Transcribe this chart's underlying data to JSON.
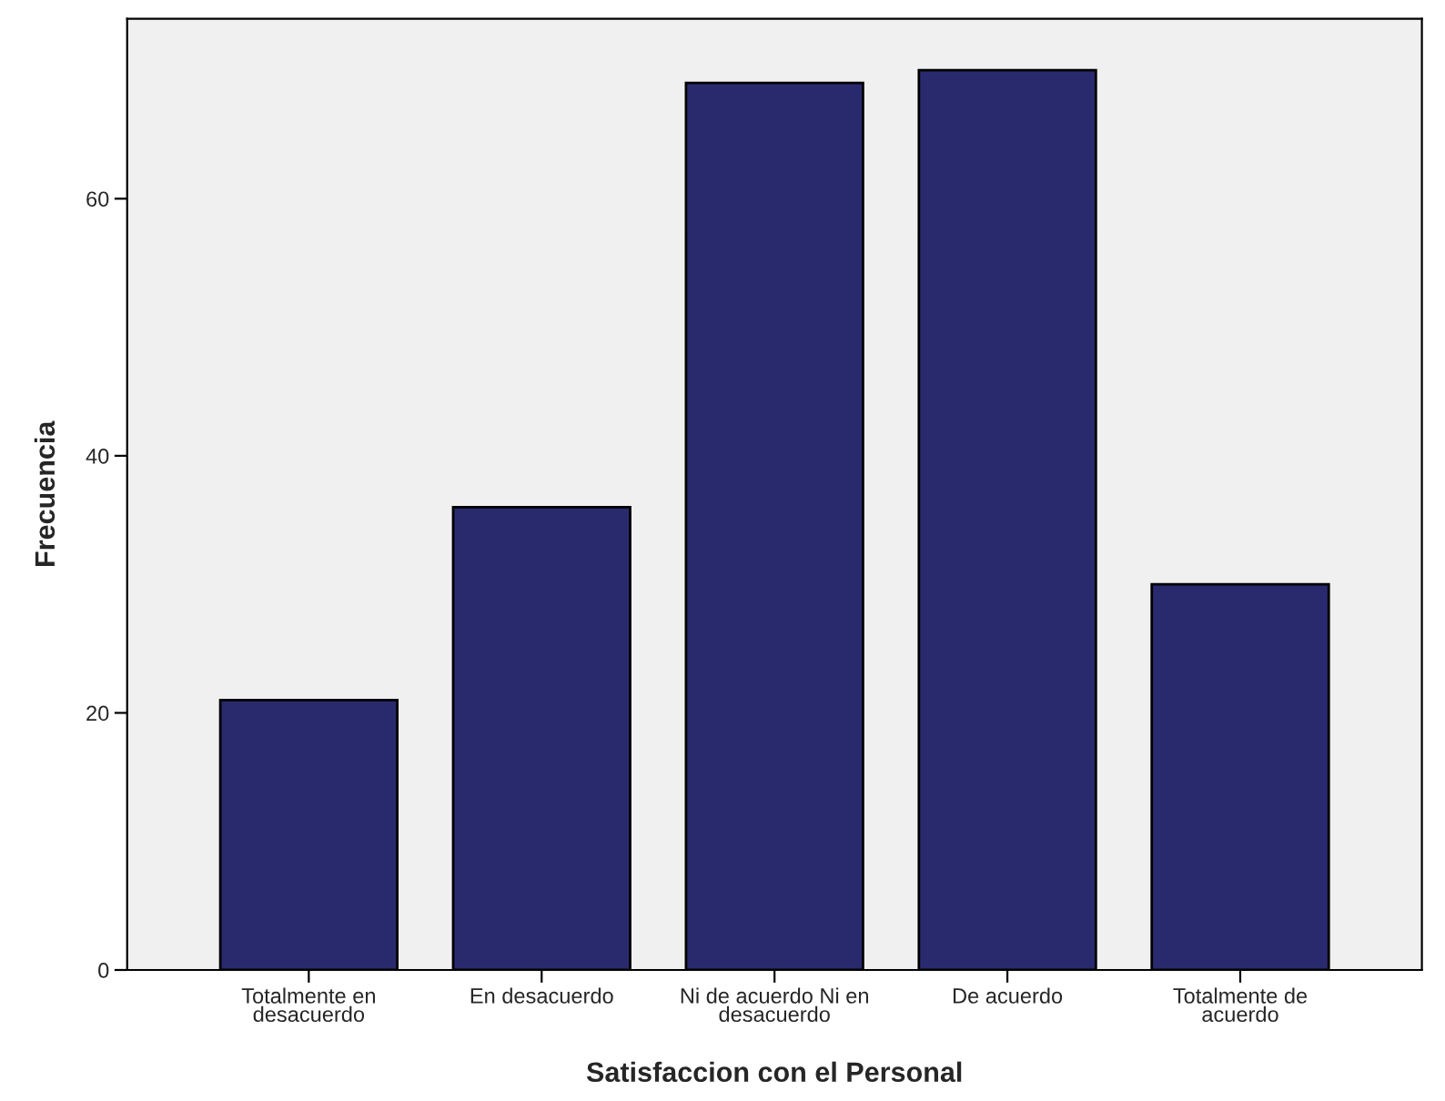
{
  "chart_data": {
    "type": "bar",
    "xlabel": "Satisfaccion con el Personal",
    "ylabel": "Frecuencia",
    "categories": [
      "Totalmente en\ndesacuerdo",
      "En desacuerdo",
      "Ni de acuerdo Ni en\ndesacuerdo",
      "De acuerdo",
      "Totalmente de\nacuerdo"
    ],
    "values": [
      21,
      36,
      69,
      70,
      30
    ],
    "color": "#292a6e",
    "ylim": [
      0,
      74
    ],
    "yticks": [
      0,
      20,
      40,
      60
    ],
    "grid": false,
    "legend": false
  }
}
